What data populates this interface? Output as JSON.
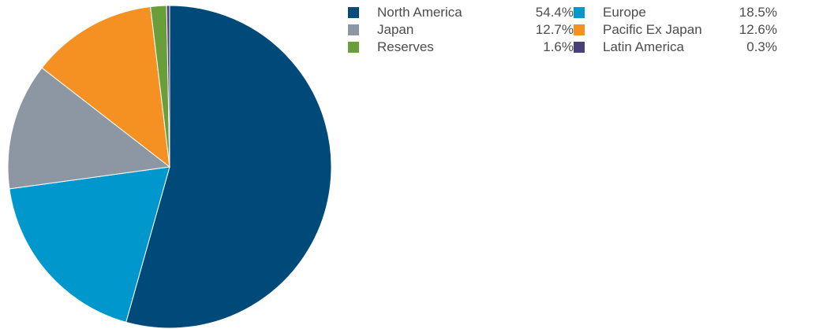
{
  "chart_data": {
    "type": "pie",
    "title": "",
    "slices": [
      {
        "label": "North America",
        "display": "54.4%",
        "value": 54.4,
        "color": "#004a7a"
      },
      {
        "label": "Europe",
        "display": "18.5%",
        "value": 18.5,
        "color": "#0097cc"
      },
      {
        "label": "Japan",
        "display": "12.7%",
        "value": 12.7,
        "color": "#8c97a3"
      },
      {
        "label": "Pacific Ex Japan",
        "display": "12.6%",
        "value": 12.6,
        "color": "#f59122"
      },
      {
        "label": "Reserves",
        "display": "1.6%",
        "value": 1.6,
        "color": "#6a9e3a"
      },
      {
        "label": "Latin America",
        "display": "0.3%",
        "value": 0.3,
        "color": "#4a3f78"
      }
    ],
    "legend_position": "top-right",
    "legend_order": [
      0,
      1,
      2,
      3,
      4,
      5
    ]
  }
}
